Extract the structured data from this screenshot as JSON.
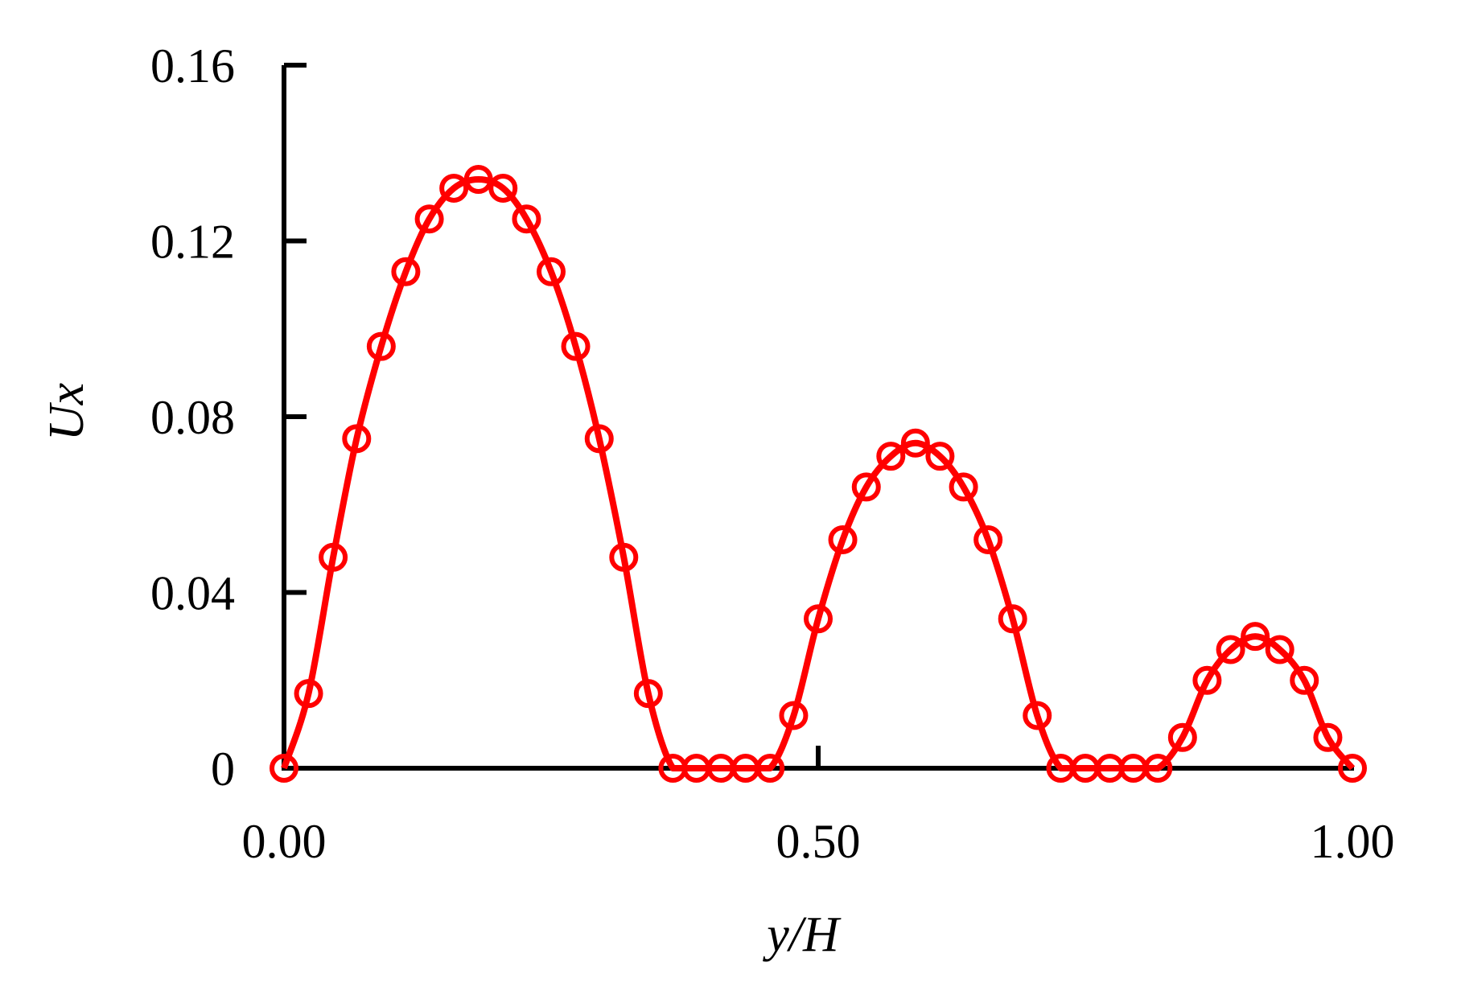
{
  "chart_data": {
    "type": "line",
    "title": "",
    "xlabel": "y/H",
    "ylabel": "Ux",
    "xlim": [
      0,
      1.0
    ],
    "ylim": [
      0,
      0.16
    ],
    "xticks": [
      0,
      0.5,
      1.0
    ],
    "xtick_labels": [
      "0.00",
      "0.50",
      "1.00"
    ],
    "yticks": [
      0,
      0.04,
      0.08,
      0.12,
      0.16
    ],
    "ytick_labels": [
      "0",
      "0.04",
      "0.08",
      "0.12",
      "0.16"
    ],
    "grid": false,
    "legend": "none",
    "series": [
      {
        "color": "#ff0000",
        "marker": "open-circle",
        "line": "solid",
        "x": [
          0.0,
          0.023,
          0.046,
          0.068,
          0.091,
          0.114,
          0.136,
          0.159,
          0.182,
          0.205,
          0.227,
          0.25,
          0.273,
          0.295,
          0.318,
          0.341,
          0.364,
          0.386,
          0.409,
          0.432,
          0.455,
          0.477,
          0.5,
          0.523,
          0.545,
          0.568,
          0.591,
          0.614,
          0.636,
          0.659,
          0.682,
          0.705,
          0.727,
          0.75,
          0.773,
          0.795,
          0.818,
          0.841,
          0.864,
          0.886,
          0.909,
          0.932,
          0.955,
          0.977,
          1.0
        ],
        "y": [
          0.0,
          0.017,
          0.048,
          0.075,
          0.096,
          0.113,
          0.125,
          0.132,
          0.134,
          0.132,
          0.125,
          0.113,
          0.096,
          0.075,
          0.048,
          0.017,
          0.0,
          0.0,
          0.0,
          0.0,
          0.0,
          0.012,
          0.034,
          0.052,
          0.064,
          0.071,
          0.074,
          0.071,
          0.064,
          0.052,
          0.034,
          0.012,
          0.0,
          0.0,
          0.0,
          0.0,
          0.0,
          0.007,
          0.02,
          0.027,
          0.03,
          0.027,
          0.02,
          0.007,
          0.0
        ]
      }
    ]
  }
}
